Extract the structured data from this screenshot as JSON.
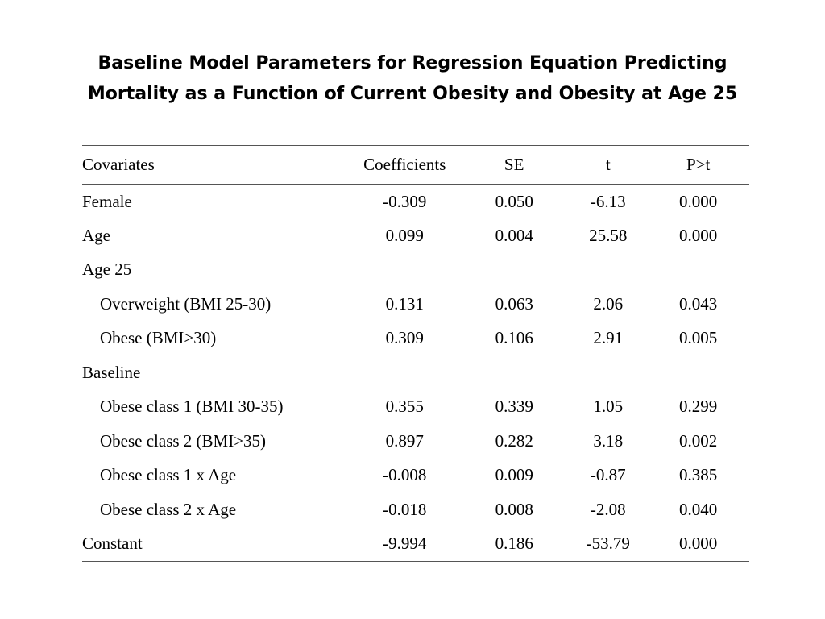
{
  "title": {
    "line1": "Baseline Model Parameters for Regression Equation Predicting",
    "line2": "Mortality as a Function of Current Obesity and Obesity at Age 25"
  },
  "table": {
    "headers": [
      "Covariates",
      "Coefficients",
      "SE",
      "t",
      "P>t"
    ],
    "rows": [
      {
        "label": "Female",
        "coef": "-0.309",
        "se": "0.050",
        "t": "-6.13",
        "p": "0.000"
      },
      {
        "label": "Age",
        "coef": "0.099",
        "se": "0.004",
        "t": "25.58",
        "p": "0.000"
      },
      {
        "label": "Age 25",
        "coef": "",
        "se": "",
        "t": "",
        "p": ""
      },
      {
        "label": "Overweight (BMI 25-30)",
        "coef": "0.131",
        "se": "0.063",
        "t": "2.06",
        "p": "0.043"
      },
      {
        "label": "Obese (BMI>30)",
        "coef": "0.309",
        "se": "0.106",
        "t": "2.91",
        "p": "0.005"
      },
      {
        "label": "Baseline",
        "coef": "",
        "se": "",
        "t": "",
        "p": ""
      },
      {
        "label": "Obese class 1 (BMI 30-35)",
        "coef": "0.355",
        "se": "0.339",
        "t": "1.05",
        "p": "0.299"
      },
      {
        "label": "Obese class 2 (BMI>35)",
        "coef": "0.897",
        "se": "0.282",
        "t": "3.18",
        "p": "0.002"
      },
      {
        "label": "Obese class 1 x Age",
        "coef": "-0.008",
        "se": "0.009",
        "t": "-0.87",
        "p": "0.385"
      },
      {
        "label": "Obese class 2 x Age",
        "coef": "-0.018",
        "se": "0.008",
        "t": "-2.08",
        "p": "0.040"
      },
      {
        "label": "Constant",
        "coef": "-9.994",
        "se": "0.186",
        "t": "-53.79",
        "p": "0.000"
      }
    ]
  }
}
